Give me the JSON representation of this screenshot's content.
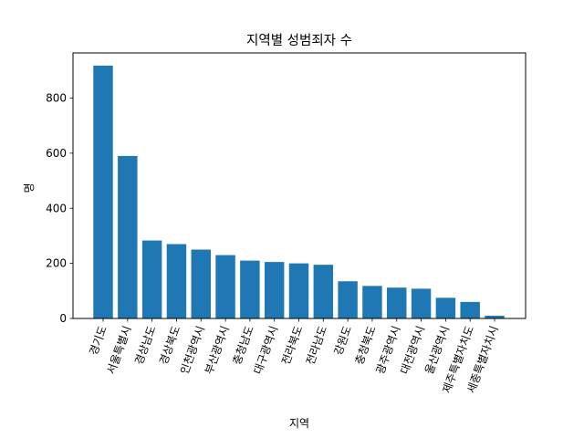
{
  "chart_data": {
    "type": "bar",
    "title": "지역별 성범죄자 수",
    "xlabel": "지역",
    "ylabel": "명",
    "categories": [
      "경기도",
      "서울특별시",
      "경상남도",
      "경상북도",
      "인천광역시",
      "부산광역시",
      "충청남도",
      "대구광역시",
      "전라북도",
      "전라남도",
      "강원도",
      "충청북도",
      "광주광역시",
      "대전광역시",
      "울산광역시",
      "제주특별자치도",
      "세종특별자치시"
    ],
    "values": [
      918,
      590,
      283,
      270,
      250,
      230,
      210,
      205,
      200,
      195,
      135,
      118,
      112,
      108,
      75,
      60,
      10
    ],
    "yticks": [
      0,
      200,
      400,
      600,
      800
    ],
    "ylim": [
      0,
      964
    ],
    "bar_color": "#1f77b4",
    "grid": false,
    "legend": "none",
    "xtick_rotation": "-70"
  }
}
